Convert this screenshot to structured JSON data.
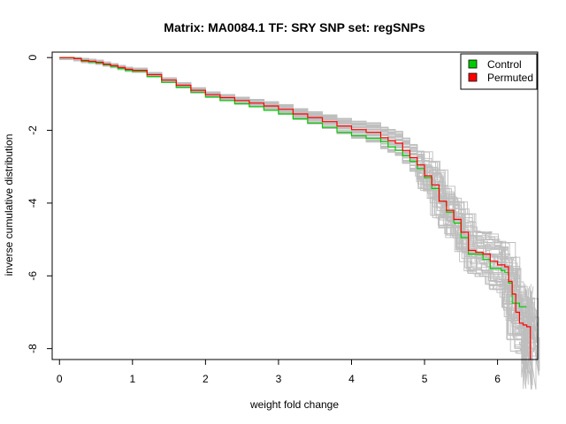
{
  "chart_data": {
    "type": "line",
    "title": "Matrix: MA0084.1 TF: SRY SNP set: regSNPs",
    "xlabel": "weight fold change",
    "ylabel": "inverse cumulative distribution",
    "xlim": [
      -0.1,
      6.55
    ],
    "ylim": [
      -8.3,
      0.15
    ],
    "x_ticks": [
      0,
      1,
      2,
      3,
      4,
      5,
      6
    ],
    "y_ticks": [
      0,
      -2,
      -4,
      -6,
      -8
    ],
    "grid": false,
    "legend_position": "top-right",
    "colors": {
      "control": "#00cc00",
      "permuted": "#ff0000",
      "background_runs": "#bebebe"
    },
    "series": [
      {
        "name": "Control",
        "x": [
          0,
          0.1,
          0.2,
          0.3,
          0.4,
          0.5,
          0.6,
          0.7,
          0.8,
          0.9,
          1.0,
          1.2,
          1.4,
          1.6,
          1.8,
          2.0,
          2.2,
          2.4,
          2.6,
          2.8,
          3.0,
          3.2,
          3.4,
          3.6,
          3.8,
          4.0,
          4.2,
          4.4,
          4.5,
          4.6,
          4.7,
          4.8,
          4.9,
          5.0,
          5.1,
          5.2,
          5.3,
          5.4,
          5.5,
          5.6,
          5.7,
          5.8,
          5.9,
          6.0,
          6.05,
          6.1,
          6.15,
          6.2,
          6.3,
          6.4
        ],
        "y": [
          0,
          0,
          -0.03,
          -0.1,
          -0.12,
          -0.15,
          -0.2,
          -0.24,
          -0.3,
          -0.35,
          -0.38,
          -0.52,
          -0.68,
          -0.82,
          -0.95,
          -1.08,
          -1.18,
          -1.27,
          -1.35,
          -1.45,
          -1.55,
          -1.68,
          -1.8,
          -1.92,
          -2.05,
          -2.15,
          -2.22,
          -2.32,
          -2.45,
          -2.55,
          -2.7,
          -2.85,
          -3.05,
          -3.3,
          -3.6,
          -3.95,
          -4.25,
          -4.55,
          -4.95,
          -5.4,
          -5.4,
          -5.55,
          -5.8,
          -5.8,
          -5.85,
          -5.9,
          -6.2,
          -6.75,
          -6.85,
          -6.85
        ]
      },
      {
        "name": "Permuted",
        "x": [
          0,
          0.1,
          0.2,
          0.3,
          0.4,
          0.5,
          0.6,
          0.7,
          0.8,
          0.9,
          1.0,
          1.2,
          1.4,
          1.6,
          1.8,
          2.0,
          2.2,
          2.4,
          2.6,
          2.8,
          3.0,
          3.2,
          3.4,
          3.6,
          3.8,
          4.0,
          4.2,
          4.4,
          4.5,
          4.6,
          4.7,
          4.8,
          4.9,
          5.0,
          5.1,
          5.2,
          5.3,
          5.4,
          5.5,
          5.6,
          5.7,
          5.8,
          5.9,
          6.0,
          6.1,
          6.15,
          6.2,
          6.25,
          6.3,
          6.35,
          6.4,
          6.45
        ],
        "y": [
          0,
          0,
          -0.03,
          -0.08,
          -0.1,
          -0.13,
          -0.18,
          -0.22,
          -0.27,
          -0.32,
          -0.35,
          -0.47,
          -0.62,
          -0.76,
          -0.9,
          -1.02,
          -1.1,
          -1.18,
          -1.25,
          -1.33,
          -1.42,
          -1.55,
          -1.65,
          -1.76,
          -1.88,
          -1.98,
          -2.05,
          -2.2,
          -2.28,
          -2.35,
          -2.55,
          -2.75,
          -2.95,
          -3.25,
          -3.5,
          -3.95,
          -4.2,
          -4.45,
          -4.8,
          -5.3,
          -5.35,
          -5.4,
          -5.6,
          -5.7,
          -5.75,
          -6.15,
          -6.5,
          -7.0,
          -7.3,
          -7.35,
          -7.4,
          -8.3
        ]
      }
    ],
    "legend": [
      {
        "label": "Control",
        "color": "#00cc00"
      },
      {
        "label": "Permuted",
        "color": "#ff0000"
      }
    ]
  }
}
